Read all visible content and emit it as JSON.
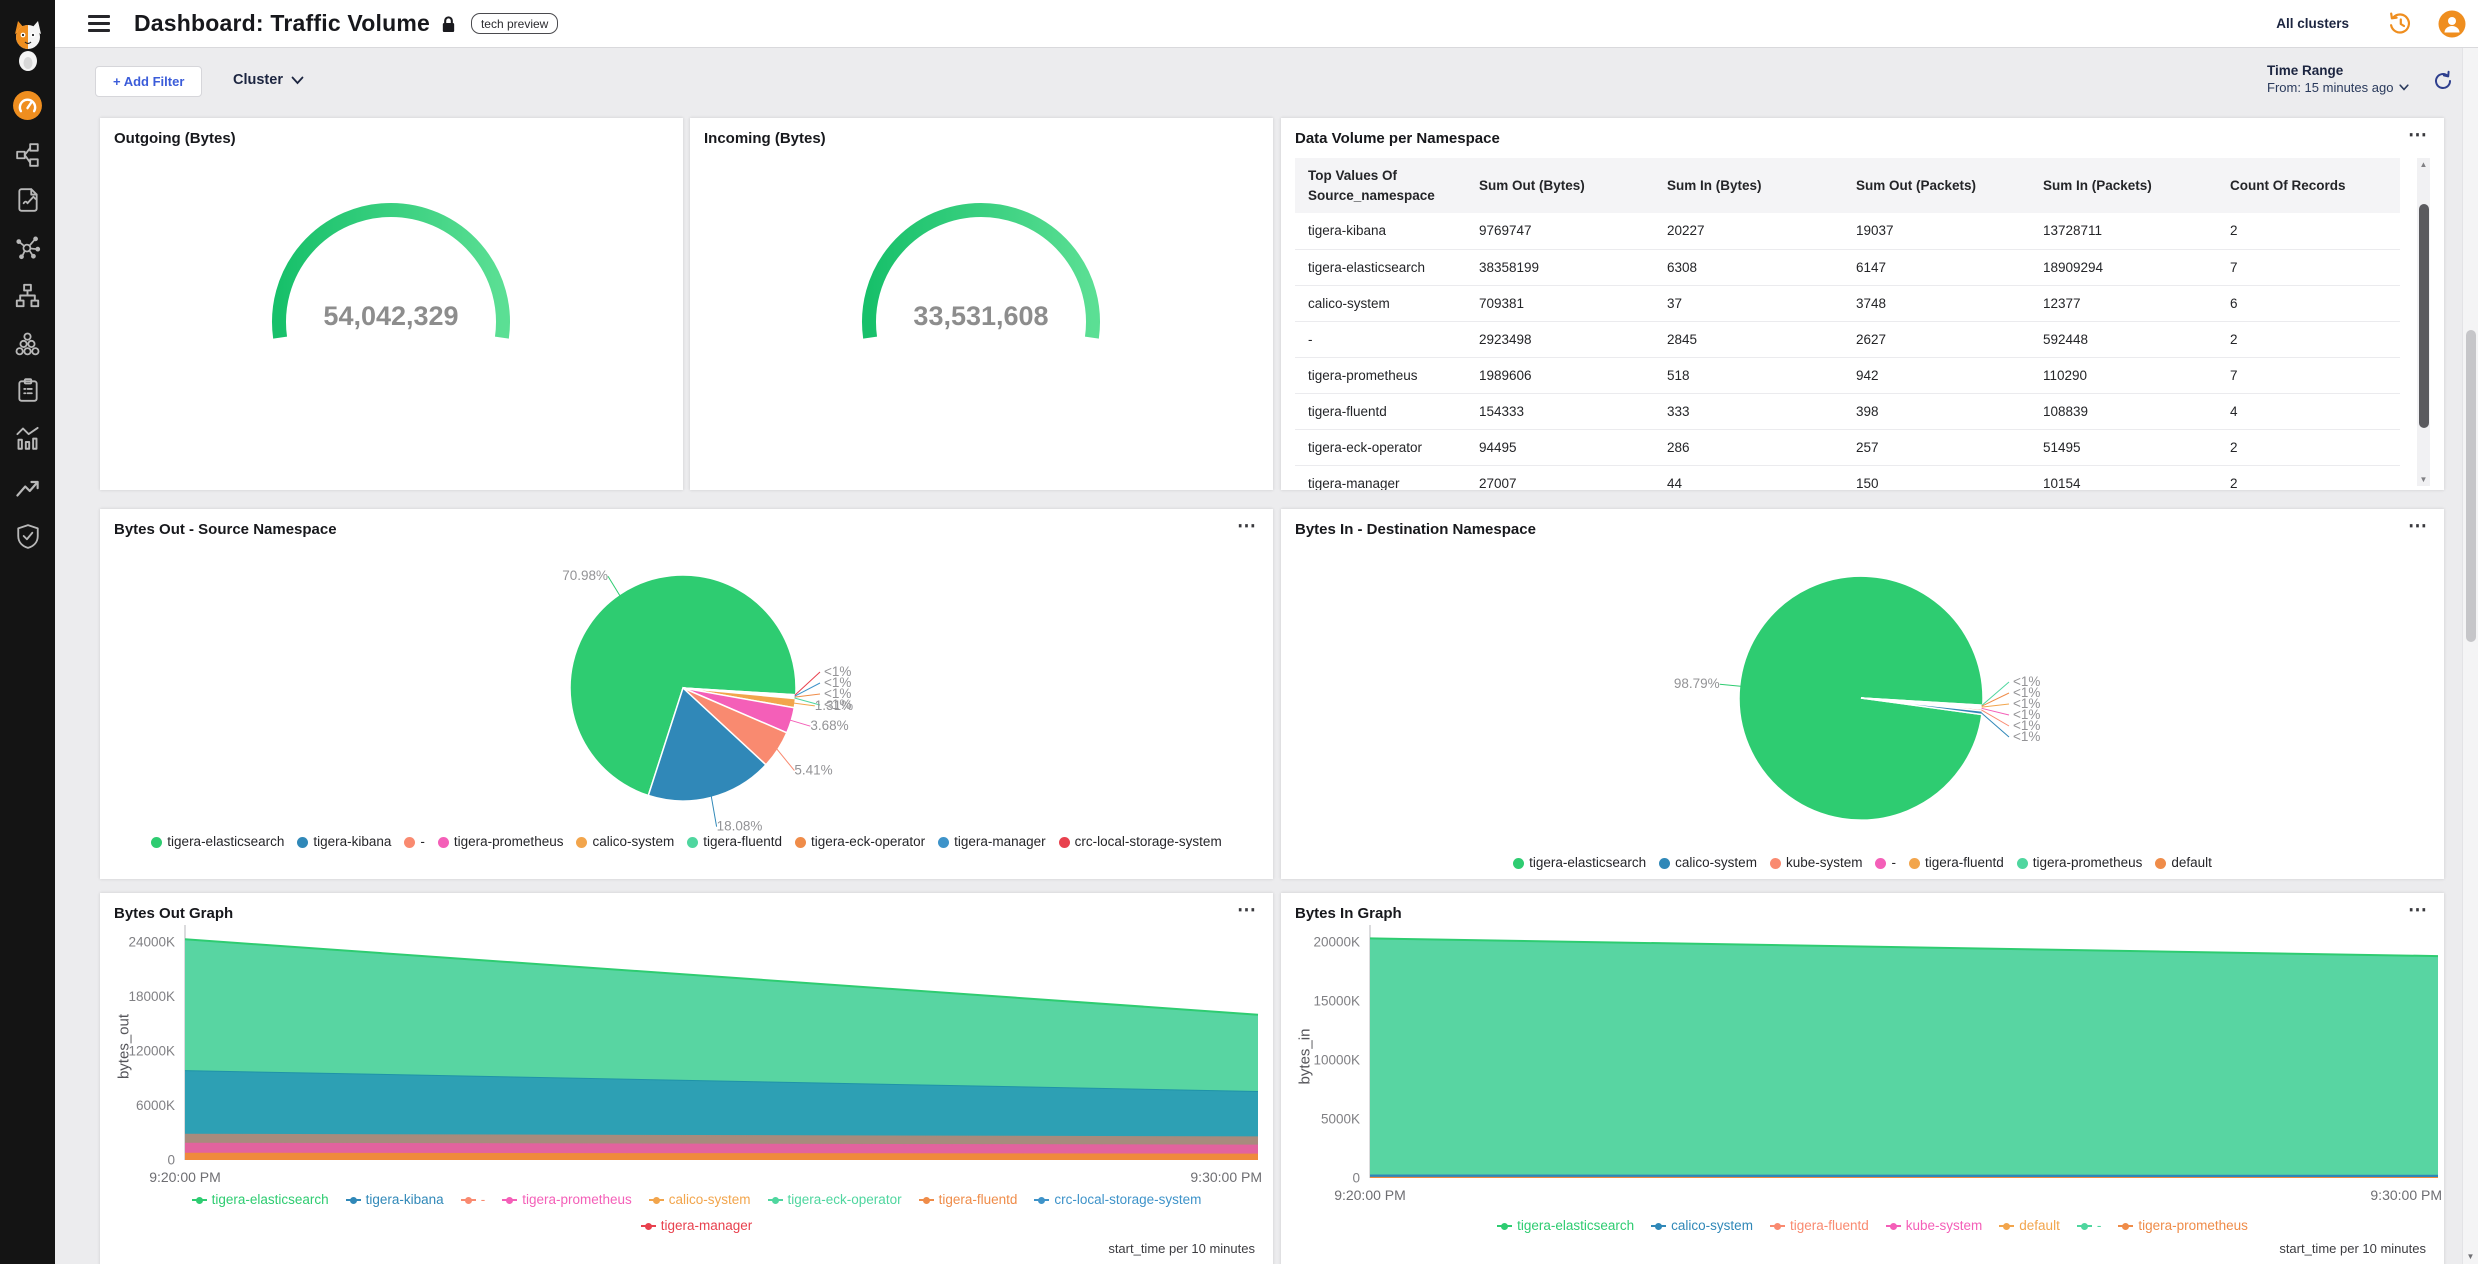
{
  "icons": {
    "menu_dots": "⋯",
    "scroll_up": "▲",
    "scroll_down": "▼"
  },
  "topbar": {
    "title": "Dashboard: Traffic Volume",
    "badge": "tech preview",
    "clusters": "All clusters"
  },
  "sidebar": {
    "items": [
      "calico-logo",
      "dashboards",
      "service-graph",
      "policies",
      "nodes",
      "endpoints",
      "clusters",
      "compliance",
      "reports",
      "trends",
      "threat-defense"
    ]
  },
  "filters": {
    "add_filter": "+ Add Filter",
    "group_by": "Cluster",
    "time_range_label": "Time Range",
    "time_range_value": "From: 15 minutes ago"
  },
  "panels": {
    "outgoing": {
      "title": "Outgoing (Bytes)"
    },
    "incoming": {
      "title": "Incoming (Bytes)"
    },
    "table": {
      "title": "Data Volume per Namespace"
    },
    "pie_out": {
      "title": "Bytes Out - Source Namespace"
    },
    "pie_in": {
      "title": "Bytes In - Destination Namespace"
    },
    "graph_out": {
      "title": "Bytes Out Graph",
      "ylabel": "bytes_out",
      "caption": "start_time per 10 minutes"
    },
    "graph_in": {
      "title": "Bytes In Graph",
      "ylabel": "bytes_in",
      "caption": "start_time per 10 minutes"
    }
  },
  "colors": {
    "accent_orange": "#ef8e1f",
    "filter_blue": "#3b5cd9",
    "refresh_blue": "#2e3f8e",
    "value_gray": "#8d8d8d"
  },
  "chart_data": [
    {
      "id": "gauge-out",
      "type": "gauge",
      "title": "Outgoing (Bytes)",
      "value": 54042329,
      "value_display": "54,042,329",
      "color_start": "#17c06a",
      "color_end": "#5bdf94"
    },
    {
      "id": "gauge-in",
      "type": "gauge",
      "title": "Incoming (Bytes)",
      "value": 33531608,
      "value_display": "33,531,608",
      "color_start": "#17c06a",
      "color_end": "#5bdf94"
    },
    {
      "id": "ns-table",
      "type": "table",
      "title": "Data Volume per Namespace",
      "columns": [
        "Top Values Of Source_namespace",
        "Sum Out (Bytes)",
        "Sum In (Bytes)",
        "Sum Out (Packets)",
        "Sum In (Packets)",
        "Count Of Records"
      ],
      "rows": [
        [
          "tigera-kibana",
          "9769747",
          "20227",
          "19037",
          "13728711",
          "2"
        ],
        [
          "tigera-elasticsearch",
          "38358199",
          "6308",
          "6147",
          "18909294",
          "7"
        ],
        [
          "calico-system",
          "709381",
          "37",
          "3748",
          "12377",
          "6"
        ],
        [
          "-",
          "2923498",
          "2845",
          "2627",
          "592448",
          "2"
        ],
        [
          "tigera-prometheus",
          "1989606",
          "518",
          "942",
          "110290",
          "7"
        ],
        [
          "tigera-fluentd",
          "154333",
          "333",
          "398",
          "108839",
          "4"
        ],
        [
          "tigera-eck-operator",
          "94495",
          "286",
          "257",
          "51495",
          "2"
        ],
        [
          "tigera-manager",
          "27007",
          "44",
          "150",
          "10154",
          "2"
        ]
      ]
    },
    {
      "id": "pie-out",
      "type": "pie",
      "title": "Bytes Out - Source Namespace",
      "start_angle": 197.9,
      "slices": [
        {
          "label": "tigera-elasticsearch",
          "pct": 70.98,
          "display": "70.98%",
          "color": "#2ecc71"
        },
        {
          "label": "crc-local-storage-system",
          "pct": 0.14,
          "display": "<1%",
          "color": "#e8414e",
          "stack": true
        },
        {
          "label": "tigera-manager",
          "pct": 0.14,
          "display": "<1%",
          "color": "#3e93c9",
          "stack": true
        },
        {
          "label": "tigera-eck-operator",
          "pct": 0.13,
          "display": "<1%",
          "color": "#ef8c49",
          "stack": true
        },
        {
          "label": "tigera-fluentd",
          "pct": 0.13,
          "display": "<1%",
          "color": "#4fd69f",
          "stack": true
        },
        {
          "label": "calico-system",
          "pct": 1.31,
          "display": "1.31%",
          "color": "#f2a54c"
        },
        {
          "label": "tigera-prometheus",
          "pct": 3.68,
          "display": "3.68%",
          "color": "#f45fb8"
        },
        {
          "label": "-",
          "pct": 5.41,
          "display": "5.41%",
          "color": "#f98a70"
        },
        {
          "label": "tigera-kibana",
          "pct": 18.08,
          "display": "18.08%",
          "color": "#3088b8"
        }
      ],
      "legend": [
        {
          "label": "tigera-elasticsearch",
          "color": "#2ecc71"
        },
        {
          "label": "tigera-kibana",
          "color": "#3088b8"
        },
        {
          "label": "-",
          "color": "#f98a70"
        },
        {
          "label": "tigera-prometheus",
          "color": "#f45fb8"
        },
        {
          "label": "calico-system",
          "color": "#f2a54c"
        },
        {
          "label": "tigera-fluentd",
          "color": "#4fd69f"
        },
        {
          "label": "tigera-eck-operator",
          "color": "#ef8c49"
        },
        {
          "label": "tigera-manager",
          "color": "#3e93c9"
        },
        {
          "label": "crc-local-storage-system",
          "color": "#e8414e"
        }
      ]
    },
    {
      "id": "pie-in",
      "type": "pie",
      "title": "Bytes In - Destination Namespace",
      "start_angle": 97.76,
      "slices": [
        {
          "label": "tigera-elasticsearch",
          "pct": 98.79,
          "display": "98.79%",
          "color": "#2ecc71"
        },
        {
          "label": "tigera-prometheus",
          "pct": 0.08,
          "display": "<1%",
          "color": "#4fd69f",
          "stack": true
        },
        {
          "label": "default",
          "pct": 0.1,
          "display": "<1%",
          "color": "#ef8c49",
          "stack": true
        },
        {
          "label": "tigera-fluentd",
          "pct": 0.14,
          "display": "<1%",
          "color": "#f2a54c",
          "stack": true
        },
        {
          "label": "-",
          "pct": 0.18,
          "display": "<1%",
          "color": "#f45fb8",
          "stack": true
        },
        {
          "label": "kube-system",
          "pct": 0.25,
          "display": "<1%",
          "color": "#f98a70",
          "stack": true
        },
        {
          "label": "calico-system",
          "pct": 0.46,
          "display": "<1%",
          "color": "#3088b8",
          "stack": true
        }
      ],
      "legend": [
        {
          "label": "tigera-elasticsearch",
          "color": "#2ecc71"
        },
        {
          "label": "calico-system",
          "color": "#3088b8"
        },
        {
          "label": "kube-system",
          "color": "#f98a70"
        },
        {
          "label": "-",
          "color": "#f45fb8"
        },
        {
          "label": "tigera-fluentd",
          "color": "#f2a54c"
        },
        {
          "label": "tigera-prometheus",
          "color": "#4fd69f"
        },
        {
          "label": "default",
          "color": "#ef8c49"
        }
      ]
    },
    {
      "id": "area-out",
      "type": "area",
      "title": "Bytes Out Graph",
      "ylabel": "bytes_out",
      "x": [
        "9:20:00 PM",
        "9:30:00 PM"
      ],
      "x_caption": "start_time per 10 minutes",
      "unit": "K",
      "stacked": true,
      "ylim": [
        0,
        24770
      ],
      "yticks": [
        {
          "v": 0,
          "label": "0"
        },
        {
          "v": 6000,
          "label": "6000K"
        },
        {
          "v": 12000,
          "label": "12000K"
        },
        {
          "v": 18000,
          "label": "18000K"
        },
        {
          "v": 24000,
          "label": "24000K"
        }
      ],
      "series": [
        {
          "name": "calico-system",
          "color": "#ef8a3c",
          "values": [
            800,
            700
          ]
        },
        {
          "name": "tigera-prometheus",
          "color": "#e2639e",
          "values": [
            1100,
            1000
          ]
        },
        {
          "name": "-",
          "color": "#a78b7d",
          "values": [
            1000,
            900
          ]
        },
        {
          "name": "tigera-kibana",
          "color": "#2da0b4",
          "edge": "#1f93a8",
          "values": [
            7000,
            5000
          ]
        },
        {
          "name": "tigera-elasticsearch",
          "color": "#58d5a2",
          "edge": "#2ecc71",
          "values": [
            14400,
            8400
          ]
        }
      ],
      "legend": [
        {
          "label": "tigera-elasticsearch",
          "color": "#2ecc71"
        },
        {
          "label": "tigera-kibana",
          "color": "#3088b8"
        },
        {
          "label": "-",
          "color": "#f98a70"
        },
        {
          "label": "tigera-prometheus",
          "color": "#f45fb8"
        },
        {
          "label": "calico-system",
          "color": "#f2a54c"
        },
        {
          "label": "tigera-eck-operator",
          "color": "#4fd69f"
        },
        {
          "label": "tigera-fluentd",
          "color": "#ef8c49"
        },
        {
          "label": "crc-local-storage-system",
          "color": "#3e93c9"
        },
        {
          "label": "tigera-manager",
          "color": "#e8414e"
        }
      ]
    },
    {
      "id": "area-in",
      "type": "area",
      "title": "Bytes In Graph",
      "ylabel": "bytes_in",
      "x": [
        "9:20:00 PM",
        "9:30:00 PM"
      ],
      "x_caption": "start_time per 10 minutes",
      "unit": "K",
      "stacked": true,
      "ylim": [
        0,
        20590
      ],
      "yticks": [
        {
          "v": 0,
          "label": "0"
        },
        {
          "v": 5000,
          "label": "5000K"
        },
        {
          "v": 10000,
          "label": "10000K"
        },
        {
          "v": 15000,
          "label": "15000K"
        },
        {
          "v": 20000,
          "label": "20000K"
        }
      ],
      "series": [
        {
          "name": "tigera-fluentd",
          "color": "#ef8a3c",
          "values": [
            90,
            85
          ]
        },
        {
          "name": "calico-system",
          "color": "#2f86b8",
          "values": [
            210,
            190
          ]
        },
        {
          "name": "tigera-elasticsearch",
          "color": "#58d5a2",
          "edge": "#2ecc71",
          "values": [
            20000,
            18525
          ]
        }
      ],
      "legend": [
        {
          "label": "tigera-elasticsearch",
          "color": "#2ecc71"
        },
        {
          "label": "calico-system",
          "color": "#3088b8"
        },
        {
          "label": "tigera-fluentd",
          "color": "#f98a70"
        },
        {
          "label": "kube-system",
          "color": "#f45fb8"
        },
        {
          "label": "default",
          "color": "#f2a54c"
        },
        {
          "label": "-",
          "color": "#4fd69f"
        },
        {
          "label": "tigera-prometheus",
          "color": "#ef8c49"
        }
      ]
    }
  ]
}
